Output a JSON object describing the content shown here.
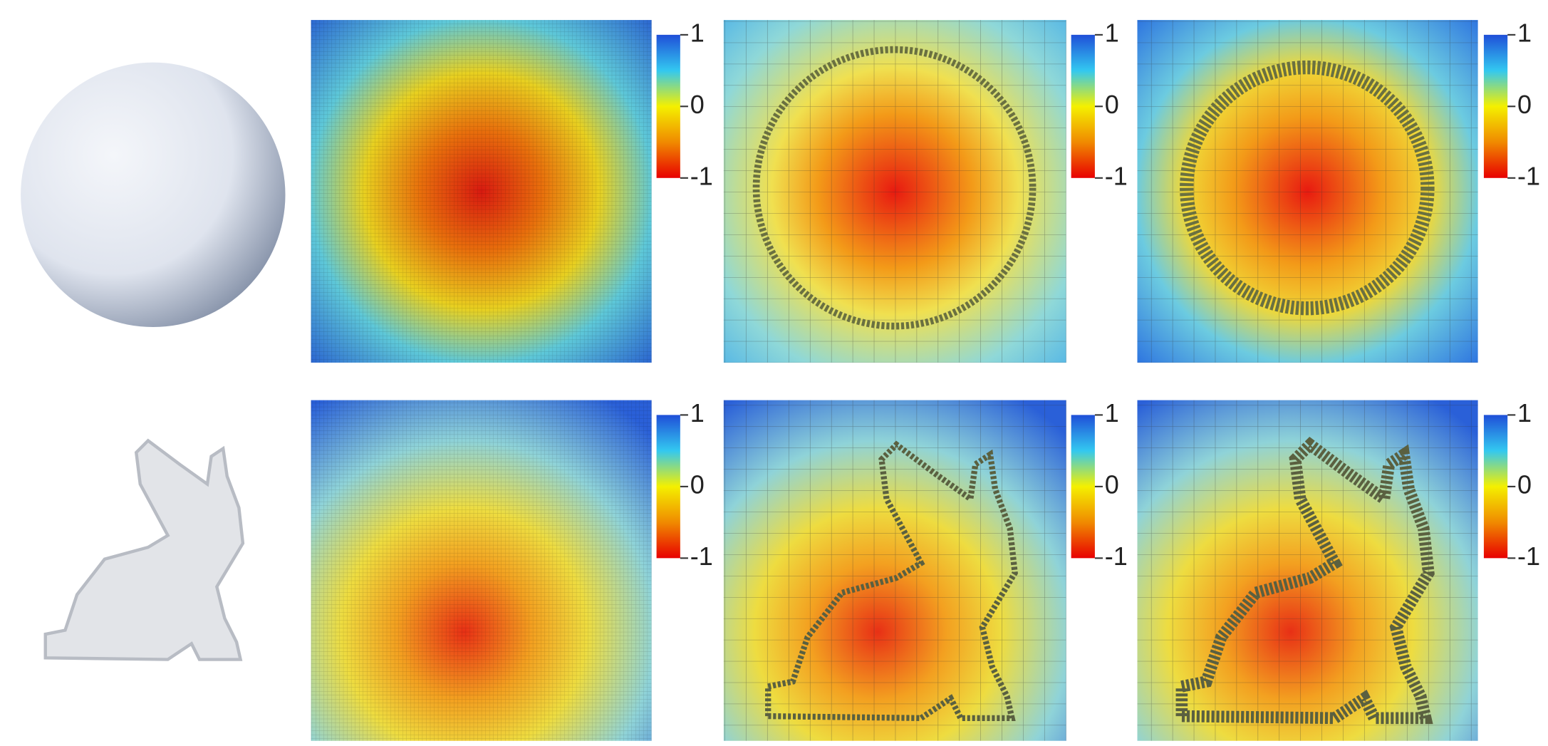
{
  "rows": [
    {
      "panels": [
        {
          "colorbar": {
            "ticks": [
              1,
              0,
              -1
            ]
          }
        },
        {
          "colorbar": {
            "ticks": [
              1,
              0,
              -1
            ]
          }
        },
        {
          "colorbar": {
            "ticks": [
              1,
              0,
              -1
            ]
          }
        }
      ]
    },
    {
      "panels": [
        {
          "colorbar": {
            "ticks": [
              1,
              0,
              -1
            ]
          }
        },
        {
          "colorbar": {
            "ticks": [
              1,
              0,
              -1
            ]
          }
        },
        {
          "colorbar": {
            "ticks": [
              1,
              0,
              -1
            ]
          }
        }
      ]
    }
  ]
}
